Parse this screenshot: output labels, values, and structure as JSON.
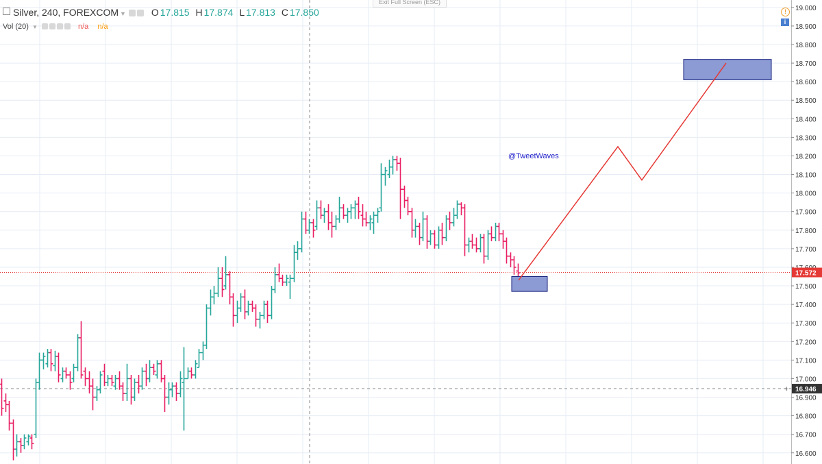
{
  "header": {
    "symbol": "Silver, 240, FOREXCOM",
    "o_label": "O",
    "o_value": "17.815",
    "h_label": "H",
    "h_value": "17.874",
    "l_label": "L",
    "l_value": "17.813",
    "c_label": "C",
    "c_value": "17.850"
  },
  "volume": {
    "label": "Vol (20)",
    "value1": "n/a",
    "value2": "n/a"
  },
  "exit_fullscreen": "Exit Full Screen (ESC)",
  "annotation": "@TweetWaves",
  "colors": {
    "up": "#26a69a",
    "down": "#e91e63",
    "projection": "#e53935",
    "zone_fill": "#8c9bd4",
    "zone_stroke": "#1a237e",
    "price_line": "#e53935",
    "cursor_label": "#333333"
  },
  "chart_data": {
    "type": "ohlc",
    "symbol": "Silver",
    "interval": "240",
    "ylim": [
      16.54,
      19.04
    ],
    "y_ticks": [
      "16.600",
      "16.700",
      "16.800",
      "16.900",
      "17.000",
      "17.100",
      "17.200",
      "17.300",
      "17.400",
      "17.500",
      "17.600",
      "17.700",
      "17.800",
      "17.900",
      "18.000",
      "18.100",
      "18.200",
      "18.300",
      "18.400",
      "18.500",
      "18.600",
      "18.700",
      "18.800",
      "18.900",
      "19.000"
    ],
    "current_price": "17.572",
    "crosshair_price": "16.946",
    "bars": [
      {
        "o": 16.97,
        "h": 17.0,
        "l": 16.8,
        "c": 16.84
      },
      {
        "o": 16.88,
        "h": 16.92,
        "l": 16.82,
        "c": 16.86
      },
      {
        "o": 16.86,
        "h": 16.88,
        "l": 16.72,
        "c": 16.76
      },
      {
        "o": 16.76,
        "h": 16.78,
        "l": 16.56,
        "c": 16.62
      },
      {
        "o": 16.62,
        "h": 16.7,
        "l": 16.58,
        "c": 16.66
      },
      {
        "o": 16.66,
        "h": 16.68,
        "l": 16.6,
        "c": 16.64
      },
      {
        "o": 16.64,
        "h": 16.7,
        "l": 16.62,
        "c": 16.68
      },
      {
        "o": 16.66,
        "h": 16.7,
        "l": 16.64,
        "c": 16.69
      },
      {
        "o": 16.68,
        "h": 16.7,
        "l": 16.62,
        "c": 16.65
      },
      {
        "o": 16.7,
        "h": 17.0,
        "l": 16.68,
        "c": 16.98
      },
      {
        "o": 16.98,
        "h": 17.14,
        "l": 16.94,
        "c": 17.1
      },
      {
        "o": 17.1,
        "h": 17.14,
        "l": 17.05,
        "c": 17.12
      },
      {
        "o": 17.08,
        "h": 17.16,
        "l": 17.06,
        "c": 17.14
      },
      {
        "o": 17.14,
        "h": 17.16,
        "l": 17.04,
        "c": 17.08
      },
      {
        "o": 17.07,
        "h": 17.15,
        "l": 17.04,
        "c": 17.12
      },
      {
        "o": 17.12,
        "h": 17.14,
        "l": 16.98,
        "c": 17.02
      },
      {
        "o": 17.0,
        "h": 17.06,
        "l": 16.98,
        "c": 17.04
      },
      {
        "o": 17.04,
        "h": 17.06,
        "l": 17.0,
        "c": 17.02
      },
      {
        "o": 17.02,
        "h": 17.04,
        "l": 16.94,
        "c": 16.98
      },
      {
        "o": 17.0,
        "h": 17.08,
        "l": 16.98,
        "c": 17.06
      },
      {
        "o": 17.06,
        "h": 17.24,
        "l": 17.04,
        "c": 17.22
      },
      {
        "o": 17.22,
        "h": 17.31,
        "l": 17.0,
        "c": 17.02
      },
      {
        "o": 17.04,
        "h": 17.06,
        "l": 16.96,
        "c": 17.0
      },
      {
        "o": 17.0,
        "h": 17.04,
        "l": 16.92,
        "c": 16.96
      },
      {
        "o": 16.96,
        "h": 17.0,
        "l": 16.83,
        "c": 16.9
      },
      {
        "o": 16.9,
        "h": 16.96,
        "l": 16.88,
        "c": 16.94
      },
      {
        "o": 16.94,
        "h": 17.04,
        "l": 16.92,
        "c": 17.02
      },
      {
        "o": 17.04,
        "h": 17.08,
        "l": 16.96,
        "c": 16.98
      },
      {
        "o": 16.98,
        "h": 17.02,
        "l": 16.96,
        "c": 17.0
      },
      {
        "o": 17.0,
        "h": 17.02,
        "l": 16.96,
        "c": 16.98
      },
      {
        "o": 16.96,
        "h": 17.02,
        "l": 16.94,
        "c": 17.0
      },
      {
        "o": 17.0,
        "h": 17.04,
        "l": 16.94,
        "c": 16.96
      },
      {
        "o": 16.96,
        "h": 16.98,
        "l": 16.88,
        "c": 16.92
      },
      {
        "o": 16.92,
        "h": 17.08,
        "l": 16.88,
        "c": 17.0
      },
      {
        "o": 17.0,
        "h": 17.02,
        "l": 16.86,
        "c": 16.9
      },
      {
        "o": 16.9,
        "h": 17.0,
        "l": 16.88,
        "c": 16.98
      },
      {
        "o": 16.98,
        "h": 17.02,
        "l": 16.92,
        "c": 16.96
      },
      {
        "o": 16.96,
        "h": 17.06,
        "l": 16.94,
        "c": 17.04
      },
      {
        "o": 17.04,
        "h": 17.08,
        "l": 16.96,
        "c": 17.0
      },
      {
        "o": 17.0,
        "h": 17.1,
        "l": 16.98,
        "c": 17.06
      },
      {
        "o": 17.06,
        "h": 17.08,
        "l": 17.02,
        "c": 17.04
      },
      {
        "o": 17.02,
        "h": 17.1,
        "l": 17.0,
        "c": 17.08
      },
      {
        "o": 17.08,
        "h": 17.1,
        "l": 16.98,
        "c": 17.0
      },
      {
        "o": 17.0,
        "h": 17.02,
        "l": 16.82,
        "c": 16.9
      },
      {
        "o": 16.9,
        "h": 16.98,
        "l": 16.86,
        "c": 16.94
      },
      {
        "o": 16.94,
        "h": 16.98,
        "l": 16.9,
        "c": 16.96
      },
      {
        "o": 16.96,
        "h": 16.98,
        "l": 16.88,
        "c": 16.92
      },
      {
        "o": 16.92,
        "h": 17.04,
        "l": 16.9,
        "c": 17.0
      },
      {
        "o": 16.98,
        "h": 17.17,
        "l": 16.72,
        "c": 17.0
      },
      {
        "o": 17.0,
        "h": 17.06,
        "l": 17.0,
        "c": 17.04
      },
      {
        "o": 17.04,
        "h": 17.06,
        "l": 17.0,
        "c": 17.02
      },
      {
        "o": 17.02,
        "h": 17.1,
        "l": 17.0,
        "c": 17.08
      },
      {
        "o": 17.06,
        "h": 17.16,
        "l": 17.06,
        "c": 17.14
      },
      {
        "o": 17.14,
        "h": 17.2,
        "l": 17.1,
        "c": 17.18
      },
      {
        "o": 17.18,
        "h": 17.4,
        "l": 17.16,
        "c": 17.38
      },
      {
        "o": 17.38,
        "h": 17.48,
        "l": 17.34,
        "c": 17.44
      },
      {
        "o": 17.44,
        "h": 17.5,
        "l": 17.4,
        "c": 17.46
      },
      {
        "o": 17.46,
        "h": 17.6,
        "l": 17.44,
        "c": 17.54
      },
      {
        "o": 17.54,
        "h": 17.6,
        "l": 17.44,
        "c": 17.48
      },
      {
        "o": 17.5,
        "h": 17.66,
        "l": 17.48,
        "c": 17.56
      },
      {
        "o": 17.56,
        "h": 17.58,
        "l": 17.4,
        "c": 17.44
      },
      {
        "o": 17.44,
        "h": 17.46,
        "l": 17.28,
        "c": 17.34
      },
      {
        "o": 17.34,
        "h": 17.42,
        "l": 17.3,
        "c": 17.38
      },
      {
        "o": 17.38,
        "h": 17.46,
        "l": 17.36,
        "c": 17.44
      },
      {
        "o": 17.44,
        "h": 17.48,
        "l": 17.32,
        "c": 17.36
      },
      {
        "o": 17.36,
        "h": 17.42,
        "l": 17.34,
        "c": 17.4
      },
      {
        "o": 17.4,
        "h": 17.42,
        "l": 17.36,
        "c": 17.38
      },
      {
        "o": 17.38,
        "h": 17.4,
        "l": 17.28,
        "c": 17.32
      },
      {
        "o": 17.32,
        "h": 17.36,
        "l": 17.27,
        "c": 17.34
      },
      {
        "o": 17.34,
        "h": 17.42,
        "l": 17.32,
        "c": 17.4
      },
      {
        "o": 17.4,
        "h": 17.42,
        "l": 17.3,
        "c": 17.34
      },
      {
        "o": 17.34,
        "h": 17.5,
        "l": 17.32,
        "c": 17.48
      },
      {
        "o": 17.48,
        "h": 17.6,
        "l": 17.46,
        "c": 17.56
      },
      {
        "o": 17.56,
        "h": 17.62,
        "l": 17.52,
        "c": 17.54
      },
      {
        "o": 17.54,
        "h": 17.56,
        "l": 17.5,
        "c": 17.52
      },
      {
        "o": 17.52,
        "h": 17.56,
        "l": 17.5,
        "c": 17.54
      },
      {
        "o": 17.52,
        "h": 17.56,
        "l": 17.43,
        "c": 17.54
      },
      {
        "o": 17.54,
        "h": 17.72,
        "l": 17.52,
        "c": 17.68
      },
      {
        "o": 17.68,
        "h": 17.74,
        "l": 17.64,
        "c": 17.7
      },
      {
        "o": 17.7,
        "h": 17.9,
        "l": 17.68,
        "c": 17.86
      },
      {
        "o": 17.86,
        "h": 17.9,
        "l": 17.78,
        "c": 17.8
      },
      {
        "o": 17.8,
        "h": 17.86,
        "l": 17.78,
        "c": 17.84
      },
      {
        "o": 17.84,
        "h": 17.86,
        "l": 17.76,
        "c": 17.8
      },
      {
        "o": 17.82,
        "h": 17.96,
        "l": 17.8,
        "c": 17.92
      },
      {
        "o": 17.92,
        "h": 17.96,
        "l": 17.86,
        "c": 17.88
      },
      {
        "o": 17.88,
        "h": 17.92,
        "l": 17.84,
        "c": 17.9
      },
      {
        "o": 17.9,
        "h": 17.94,
        "l": 17.8,
        "c": 17.84
      },
      {
        "o": 17.84,
        "h": 17.9,
        "l": 17.76,
        "c": 17.82
      },
      {
        "o": 17.82,
        "h": 17.88,
        "l": 17.8,
        "c": 17.86
      },
      {
        "o": 17.86,
        "h": 17.98,
        "l": 17.84,
        "c": 17.92
      },
      {
        "o": 17.92,
        "h": 17.94,
        "l": 17.86,
        "c": 17.88
      },
      {
        "o": 17.88,
        "h": 17.92,
        "l": 17.84,
        "c": 17.9
      },
      {
        "o": 17.9,
        "h": 17.94,
        "l": 17.86,
        "c": 17.92
      },
      {
        "o": 17.92,
        "h": 17.96,
        "l": 17.86,
        "c": 17.94
      },
      {
        "o": 17.94,
        "h": 17.98,
        "l": 17.86,
        "c": 17.9
      },
      {
        "o": 17.88,
        "h": 17.94,
        "l": 17.82,
        "c": 17.86
      },
      {
        "o": 17.86,
        "h": 17.9,
        "l": 17.82,
        "c": 17.84
      },
      {
        "o": 17.84,
        "h": 17.88,
        "l": 17.8,
        "c": 17.86
      },
      {
        "o": 17.84,
        "h": 17.9,
        "l": 17.78,
        "c": 17.88
      },
      {
        "o": 17.88,
        "h": 17.92,
        "l": 17.84,
        "c": 17.9
      },
      {
        "o": 17.92,
        "h": 18.16,
        "l": 17.9,
        "c": 18.1
      },
      {
        "o": 18.1,
        "h": 18.14,
        "l": 18.04,
        "c": 18.12
      },
      {
        "o": 18.1,
        "h": 18.18,
        "l": 18.08,
        "c": 18.14
      },
      {
        "o": 18.14,
        "h": 18.2,
        "l": 18.1,
        "c": 18.18
      },
      {
        "o": 18.18,
        "h": 18.2,
        "l": 18.12,
        "c": 18.16
      },
      {
        "o": 18.16,
        "h": 18.19,
        "l": 17.86,
        "c": 18.02
      },
      {
        "o": 18.02,
        "h": 18.04,
        "l": 17.92,
        "c": 17.96
      },
      {
        "o": 17.96,
        "h": 17.98,
        "l": 17.88,
        "c": 17.9
      },
      {
        "o": 17.9,
        "h": 17.92,
        "l": 17.76,
        "c": 17.8
      },
      {
        "o": 17.8,
        "h": 17.86,
        "l": 17.76,
        "c": 17.82
      },
      {
        "o": 17.82,
        "h": 17.84,
        "l": 17.72,
        "c": 17.76
      },
      {
        "o": 17.76,
        "h": 17.9,
        "l": 17.74,
        "c": 17.86
      },
      {
        "o": 17.86,
        "h": 17.88,
        "l": 17.7,
        "c": 17.74
      },
      {
        "o": 17.74,
        "h": 17.8,
        "l": 17.72,
        "c": 17.78
      },
      {
        "o": 17.78,
        "h": 17.8,
        "l": 17.7,
        "c": 17.72
      },
      {
        "o": 17.72,
        "h": 17.82,
        "l": 17.7,
        "c": 17.8
      },
      {
        "o": 17.8,
        "h": 17.84,
        "l": 17.72,
        "c": 17.76
      },
      {
        "o": 17.76,
        "h": 17.88,
        "l": 17.74,
        "c": 17.86
      },
      {
        "o": 17.86,
        "h": 17.9,
        "l": 17.8,
        "c": 17.84
      },
      {
        "o": 17.84,
        "h": 17.92,
        "l": 17.82,
        "c": 17.88
      },
      {
        "o": 17.88,
        "h": 17.96,
        "l": 17.86,
        "c": 17.94
      },
      {
        "o": 17.94,
        "h": 17.95,
        "l": 17.88,
        "c": 17.92
      },
      {
        "o": 17.92,
        "h": 17.94,
        "l": 17.66,
        "c": 17.72
      },
      {
        "o": 17.72,
        "h": 17.76,
        "l": 17.68,
        "c": 17.74
      },
      {
        "o": 17.74,
        "h": 17.78,
        "l": 17.7,
        "c": 17.72
      },
      {
        "o": 17.72,
        "h": 17.76,
        "l": 17.68,
        "c": 17.7
      },
      {
        "o": 17.7,
        "h": 17.78,
        "l": 17.68,
        "c": 17.76
      },
      {
        "o": 17.76,
        "h": 17.78,
        "l": 17.62,
        "c": 17.66
      },
      {
        "o": 17.66,
        "h": 17.8,
        "l": 17.64,
        "c": 17.78
      },
      {
        "o": 17.78,
        "h": 17.82,
        "l": 17.74,
        "c": 17.76
      },
      {
        "o": 17.76,
        "h": 17.84,
        "l": 17.74,
        "c": 17.82
      },
      {
        "o": 17.82,
        "h": 17.84,
        "l": 17.74,
        "c": 17.78
      },
      {
        "o": 17.78,
        "h": 17.8,
        "l": 17.7,
        "c": 17.74
      },
      {
        "o": 17.74,
        "h": 17.76,
        "l": 17.62,
        "c": 17.66
      },
      {
        "o": 17.66,
        "h": 17.68,
        "l": 17.6,
        "c": 17.64
      },
      {
        "o": 17.64,
        "h": 17.66,
        "l": 17.56,
        "c": 17.6
      },
      {
        "o": 17.58,
        "h": 17.62,
        "l": 17.53,
        "c": 17.57
      }
    ],
    "zones": [
      {
        "y_top": 17.55,
        "y_bottom": 17.47
      },
      {
        "y_top": 18.72,
        "y_bottom": 18.61
      }
    ],
    "projection": [
      17.53,
      18.25,
      18.07,
      18.7
    ]
  }
}
